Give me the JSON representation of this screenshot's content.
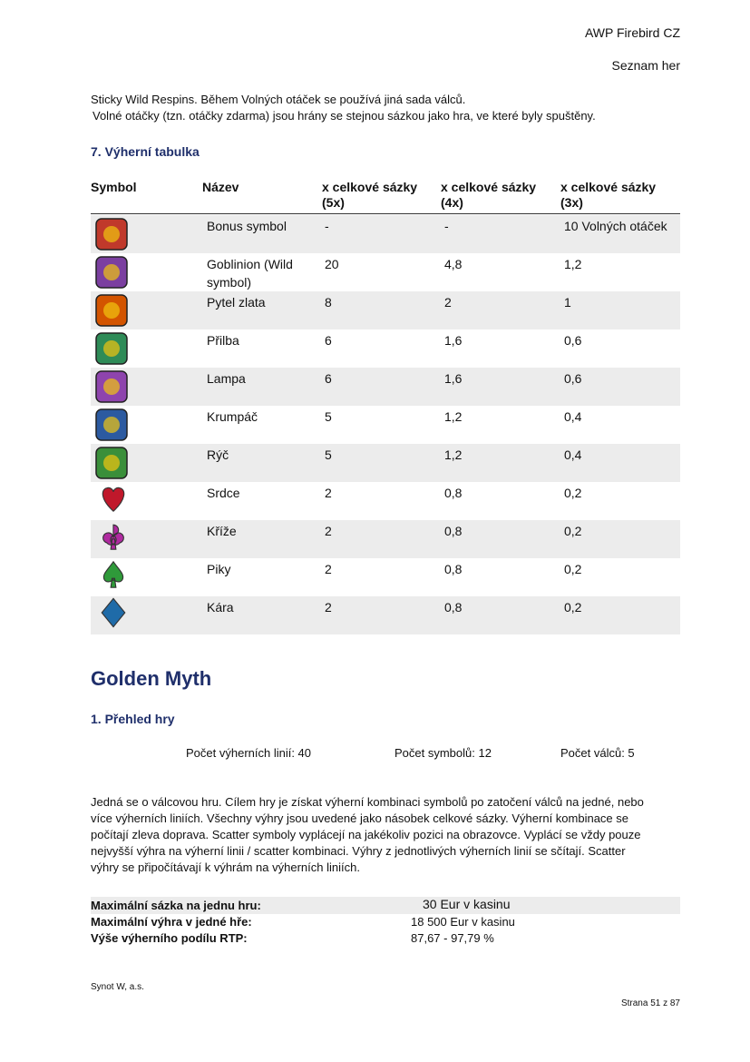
{
  "header": {
    "company": "AWP Firebird CZ",
    "section": "Seznam her"
  },
  "intro": [
    "Sticky Wild Respins. Během Volných otáček se používá jiná sada válců.",
    "Volné otáčky (tzn. otáčky zdarma) jsou hrány se stejnou sázkou jako hra, ve které byly spuštěny."
  ],
  "paytable": {
    "heading": "7. Výherní tabulka",
    "columns": [
      "Symbol",
      "Název",
      "x celkové sázky (5x)",
      "x celkové sázky (4x)",
      "x celkové sázky (3x)"
    ],
    "rows": [
      [
        "Bonus symbol",
        "-",
        "-",
        "10 Volných otáček"
      ],
      [
        "Goblinion (Wild symbol)",
        "20",
        "4,8",
        "1,2"
      ],
      [
        "Pytel zlata",
        "8",
        "2",
        "1"
      ],
      [
        "Přilba",
        "6",
        "1,6",
        "0,6"
      ],
      [
        "Lampa",
        "6",
        "1,6",
        "0,6"
      ],
      [
        "Krumpáč",
        "5",
        "1,2",
        "0,4"
      ],
      [
        "Rýč",
        "5",
        "1,2",
        "0,4"
      ],
      [
        "Srdce",
        "2",
        "0,8",
        "0,2"
      ],
      [
        "Kříže",
        "2",
        "0,8",
        "0,2"
      ],
      [
        "Piky",
        "2",
        "0,8",
        "0,2"
      ],
      [
        "Kára",
        "2",
        "0,8",
        "0,2"
      ]
    ]
  },
  "game": {
    "title": "Golden Myth",
    "overview_heading": "1. Přehled hry",
    "facts": [
      "Počet výherních linií: 40",
      "Počet symbolů: 12",
      "Počet válců: 5"
    ],
    "description": [
      "Jedná se o válcovou hru. Cílem hry je získat výherní kombinaci symbolů po zatočení válců na jedné, nebo",
      "více výherních liniích. Všechny výhry jsou uvedené jako násobek celkové sázky. Výherní kombinace se",
      "počítají zleva doprava. Scatter symboly vyplácejí na jakékoliv pozici na obrazovce. Vyplácí se vždy pouze",
      "nejvyšší výhra na výherní linii / scatter kombinaci. Výhry z jednotlivých výherních linií se sčítají. Scatter",
      "výhry se připočítávají k výhrám na výherních liniích."
    ],
    "summary": [
      {
        "label": "Maximální sázka na jednu hru:",
        "value": "30 Eur v kasinu"
      },
      {
        "label": "Maximální výhra v jedné hře:",
        "value": "18 500 Eur v kasinu"
      },
      {
        "label": "Výše výherního podílu RTP:",
        "value": "87,67 - 97,79 %"
      }
    ]
  },
  "footer": {
    "company": "Synot W, a.s.",
    "page": "Strana 51 z 87"
  }
}
